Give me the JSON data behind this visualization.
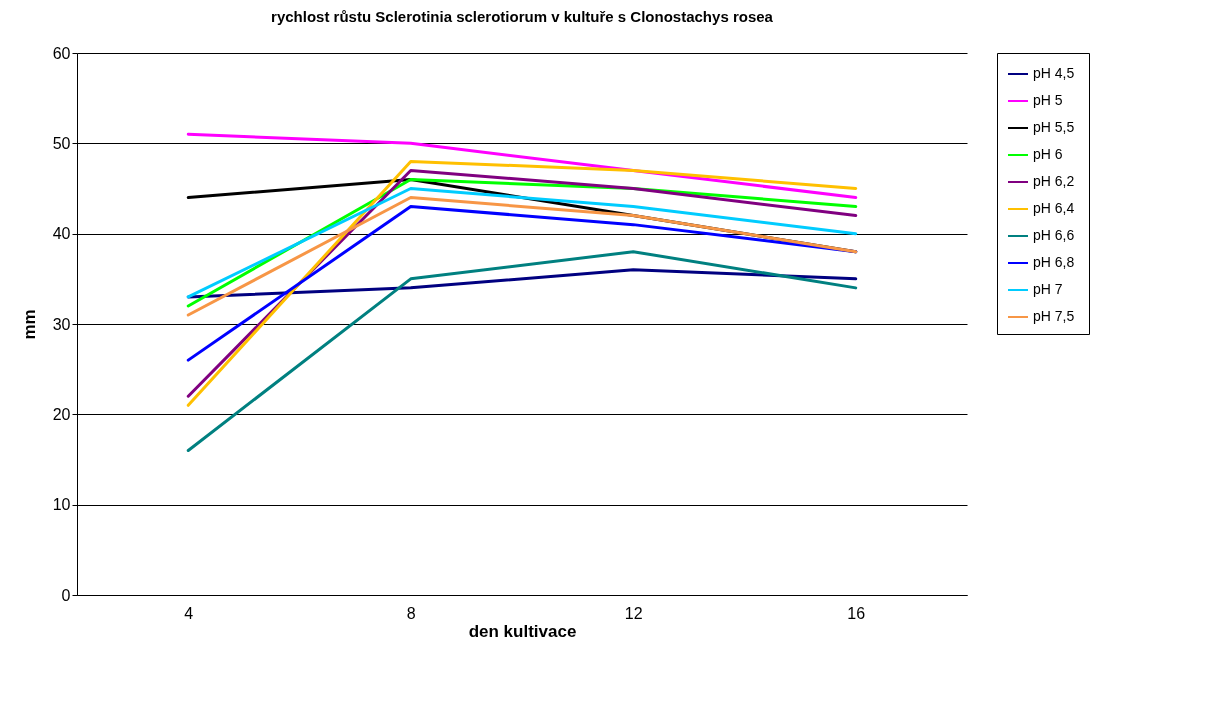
{
  "chart_data": {
    "type": "line",
    "title": "rychlost růstu Sclerotinia sclerotiorum v kultuře s Clonostachys rosea",
    "xlabel": "den kultivace",
    "ylabel": "mm",
    "categories": [
      "4",
      "8",
      "12",
      "16"
    ],
    "ylim": [
      0,
      60
    ],
    "yticks": [
      0,
      10,
      20,
      30,
      40,
      50,
      60
    ],
    "grid": "y",
    "legend": "right",
    "series": [
      {
        "name": "pH  4,5",
        "color": "#000080",
        "values": [
          33,
          34,
          36,
          35
        ]
      },
      {
        "name": "pH 5",
        "color": "#ff00ff",
        "values": [
          51,
          50,
          47,
          44
        ]
      },
      {
        "name": "pH 5,5",
        "color": "#000000",
        "values": [
          44,
          46,
          42,
          38
        ]
      },
      {
        "name": "pH 6",
        "color": "#00ff00",
        "values": [
          32,
          46,
          45,
          43
        ]
      },
      {
        "name": "pH 6,2",
        "color": "#800080",
        "values": [
          22,
          47,
          45,
          42
        ]
      },
      {
        "name": "pH 6,4",
        "color": "#ffc000",
        "values": [
          21,
          48,
          47,
          45
        ]
      },
      {
        "name": "pH 6,6",
        "color": "#008080",
        "values": [
          16,
          35,
          38,
          34
        ]
      },
      {
        "name": "pH 6,8",
        "color": "#0000ff",
        "values": [
          26,
          43,
          41,
          38
        ]
      },
      {
        "name": "pH 7",
        "color": "#00ccff",
        "values": [
          33,
          45,
          43,
          40
        ]
      },
      {
        "name": "pH 7,5",
        "color": "#f79646",
        "values": [
          31,
          44,
          42,
          38
        ]
      }
    ]
  }
}
